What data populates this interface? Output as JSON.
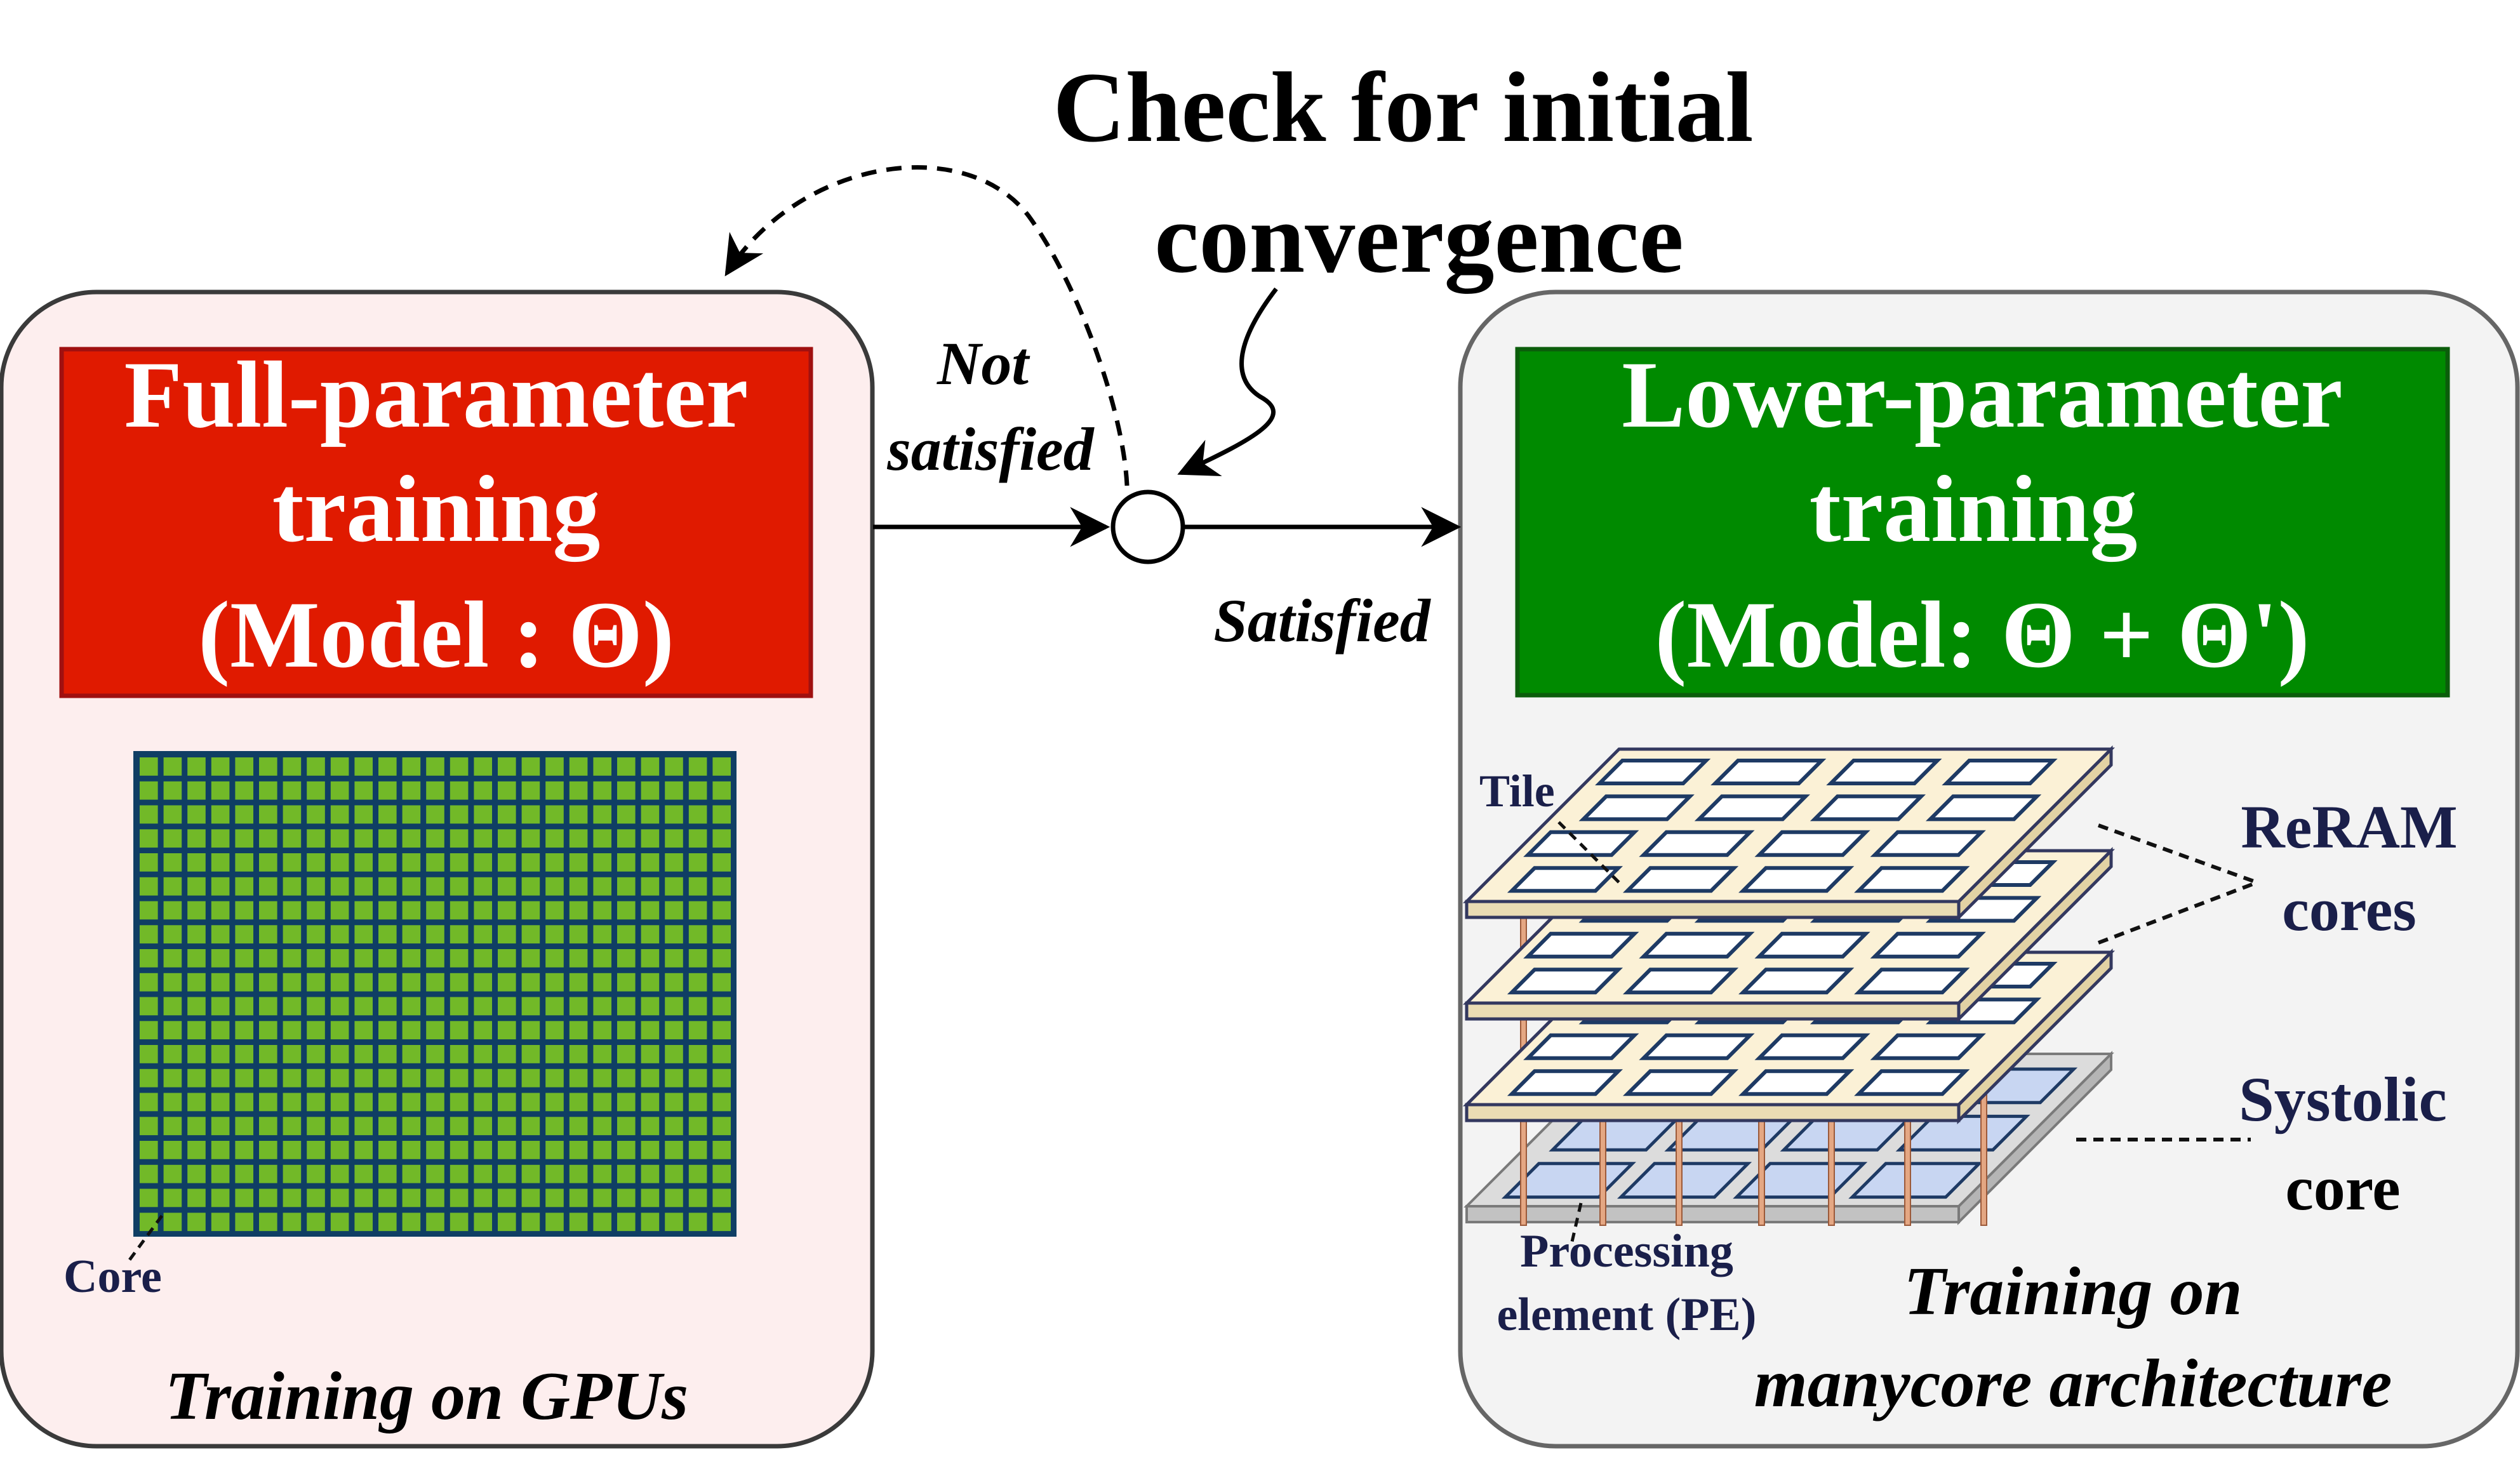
{
  "header": {
    "check_line1": "Check for initial",
    "check_line2": "convergence"
  },
  "decision": {
    "not_satisfied_line1": "Not",
    "not_satisfied_line2": "satisfied",
    "satisfied": "Satisfied"
  },
  "left_panel": {
    "title_line1": "Full-parameter",
    "title_line2": "training",
    "title_line3": "(Model : Θ)",
    "core_label": "Core",
    "caption": "Training on GPUs",
    "grid_rows": 20,
    "grid_cols": 25
  },
  "right_panel": {
    "title_line1": "Lower-parameter",
    "title_line2": "training",
    "title_line3": "(Model: Θ + Θ')",
    "tile_label": "Tile",
    "reram_line1": "ReRAM",
    "reram_line2": "cores",
    "systolic_line1": "Systolic",
    "systolic_line2": "core",
    "pe_line1": "Processing",
    "pe_line2": "element (PE)",
    "caption_line1": "Training on",
    "caption_line2": "manycore architecture"
  },
  "colors": {
    "left_bg": "#fdeeee",
    "right_bg": "#f3f3f3",
    "left_title": "#e01a00",
    "right_title": "#008a00",
    "grid_frame": "#0f3e64",
    "grid_cell": "#72b928",
    "layer_fill": "#fbf1d6",
    "systolic_fill": "#c8d6f2",
    "navy_text": "#1a1f4a"
  }
}
